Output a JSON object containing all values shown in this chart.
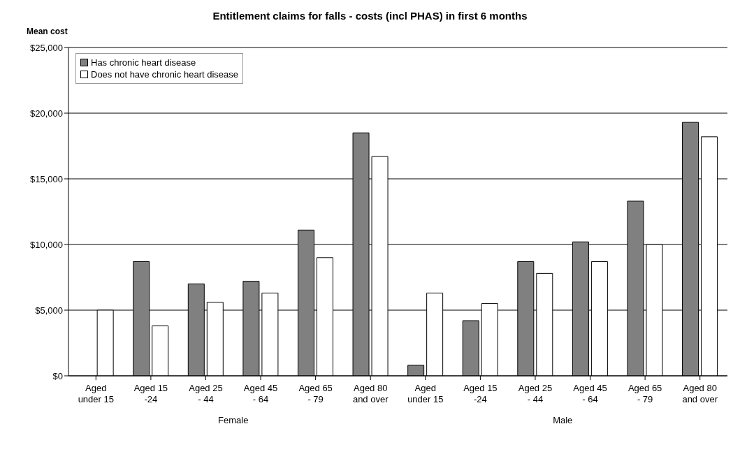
{
  "chart_data": {
    "type": "bar",
    "title": "Entitlement claims for falls -  costs (incl PHAS) in first 6 months",
    "ylabel": "Mean cost",
    "categories": [
      "Aged under 15",
      "Aged 15 -24",
      "Aged 25 - 44",
      "Aged 45 - 64",
      "Aged 65 - 79",
      "Aged 80 and over",
      "Aged under 15",
      "Aged 15 -24",
      "Aged 25 - 44",
      "Aged 45 - 64",
      "Aged 65 - 79",
      "Aged 80 and over"
    ],
    "series": [
      {
        "name": "Has chronic heart disease",
        "color": "#808080",
        "values": [
          0,
          8700,
          7000,
          7200,
          11100,
          18500,
          800,
          4200,
          8700,
          10200,
          13300,
          19300
        ]
      },
      {
        "name": "Does not have chronic heart disease",
        "color": "#ffffff",
        "values": [
          5000,
          3800,
          5600,
          6300,
          9000,
          16700,
          6300,
          5500,
          7800,
          8700,
          10000,
          18200
        ]
      }
    ],
    "ylim": [
      0,
      25000
    ],
    "yticks": [
      {
        "value": 0,
        "label": "$0"
      },
      {
        "value": 5000,
        "label": "$5,000"
      },
      {
        "value": 10000,
        "label": "$10,000"
      },
      {
        "value": 15000,
        "label": "$15,000"
      },
      {
        "value": 20000,
        "label": "$20,000"
      },
      {
        "value": 25000,
        "label": "$25,000"
      }
    ],
    "grid": "y",
    "legend": "top left",
    "annotations": [
      "Female",
      "Male"
    ]
  }
}
